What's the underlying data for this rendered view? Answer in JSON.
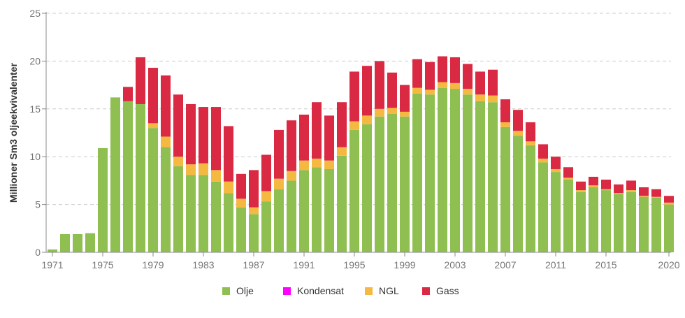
{
  "chart_data": {
    "type": "bar",
    "stacked": true,
    "title": "",
    "xlabel": "",
    "ylabel": "Millioner Sm3 oljeekvivalenter",
    "ylim": [
      0,
      25
    ],
    "yticks": [
      0,
      5,
      10,
      15,
      20,
      25
    ],
    "xtick_labels": [
      "1971",
      "1975",
      "1979",
      "1983",
      "1987",
      "1991",
      "1995",
      "1999",
      "2003",
      "2007",
      "2011",
      "2015",
      "2020"
    ],
    "grid": true,
    "legend_position": "bottom-center",
    "categories": [
      1971,
      1972,
      1973,
      1974,
      1975,
      1976,
      1977,
      1978,
      1979,
      1980,
      1981,
      1982,
      1983,
      1984,
      1985,
      1986,
      1987,
      1988,
      1989,
      1990,
      1991,
      1992,
      1993,
      1994,
      1995,
      1996,
      1997,
      1998,
      1999,
      2000,
      2001,
      2002,
      2003,
      2004,
      2005,
      2006,
      2007,
      2008,
      2009,
      2010,
      2011,
      2012,
      2013,
      2014,
      2015,
      2016,
      2017,
      2018,
      2019,
      2020
    ],
    "series": [
      {
        "name": "Olje",
        "color": "#8fbf50",
        "values": [
          0.3,
          1.9,
          1.9,
          2.0,
          10.9,
          16.2,
          15.8,
          15.5,
          13.0,
          11.0,
          9.0,
          8.1,
          8.1,
          7.4,
          6.2,
          4.7,
          4.0,
          5.3,
          6.6,
          7.5,
          8.6,
          8.9,
          8.7,
          10.1,
          12.8,
          13.4,
          14.2,
          14.5,
          14.2,
          16.6,
          16.5,
          17.2,
          17.1,
          16.5,
          15.8,
          15.7,
          13.1,
          12.2,
          11.2,
          9.4,
          8.4,
          7.6,
          6.3,
          6.8,
          6.5,
          6.1,
          6.3,
          5.8,
          5.7,
          5.0
        ]
      },
      {
        "name": "Kondensat",
        "color": "#ff00ff",
        "values": [
          0,
          0,
          0,
          0,
          0,
          0,
          0,
          0,
          0,
          0,
          0,
          0,
          0,
          0,
          0,
          0,
          0,
          0,
          0,
          0,
          0,
          0,
          0,
          0,
          0,
          0,
          0,
          0,
          0,
          0,
          0,
          0,
          0,
          0,
          0,
          0,
          0,
          0,
          0,
          0,
          0,
          0,
          0,
          0,
          0,
          0,
          0,
          0,
          0,
          0
        ]
      },
      {
        "name": "NGL",
        "color": "#f5b942",
        "values": [
          0,
          0,
          0,
          0,
          0,
          0,
          0,
          0,
          0.5,
          1.1,
          1.0,
          1.1,
          1.2,
          1.2,
          1.2,
          0.9,
          0.7,
          1.1,
          1.1,
          1.0,
          1.0,
          0.9,
          0.9,
          0.9,
          0.9,
          0.9,
          0.8,
          0.6,
          0.5,
          0.6,
          0.5,
          0.6,
          0.6,
          0.6,
          0.7,
          0.7,
          0.5,
          0.5,
          0.4,
          0.4,
          0.3,
          0.2,
          0.2,
          0.2,
          0.1,
          0.1,
          0.2,
          0.1,
          0.1,
          0.2
        ]
      },
      {
        "name": "Gass",
        "color": "#da2943",
        "values": [
          0,
          0,
          0,
          0,
          0,
          0,
          1.5,
          4.9,
          5.8,
          6.4,
          6.5,
          6.3,
          5.9,
          6.6,
          5.8,
          2.6,
          3.9,
          3.8,
          5.1,
          5.3,
          4.8,
          5.9,
          4.7,
          4.7,
          5.2,
          5.2,
          5.0,
          3.7,
          2.8,
          3.0,
          2.9,
          2.7,
          2.7,
          2.6,
          2.4,
          2.7,
          2.4,
          2.2,
          2.0,
          1.5,
          1.3,
          1.1,
          0.9,
          0.9,
          1.0,
          0.9,
          1.0,
          0.9,
          0.8,
          0.7
        ]
      }
    ]
  }
}
